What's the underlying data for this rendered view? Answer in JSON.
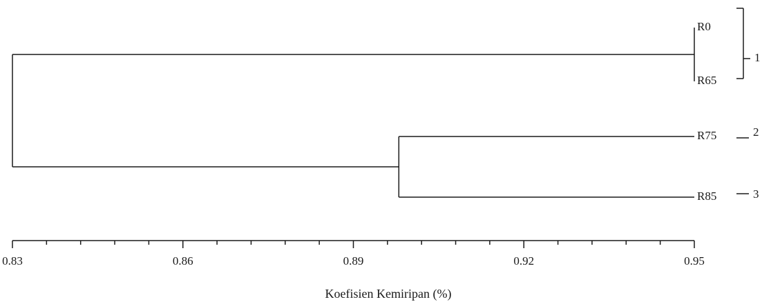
{
  "chart_data": {
    "type": "dendrogram",
    "title": "",
    "xlabel": "Koefisien Kemiripan (%)",
    "xlim": [
      0.83,
      0.95
    ],
    "major_ticks": [
      0.83,
      0.86,
      0.89,
      0.92,
      0.95
    ],
    "minor_tick_step": 0.006,
    "tick_labels": [
      "0.83",
      "0.86",
      "0.89",
      "0.92",
      "0.95"
    ],
    "leaves": [
      "R0",
      "R65",
      "R75",
      "R85"
    ],
    "merges": [
      {
        "left": "R0",
        "right": "R65",
        "similarity": 0.95
      },
      {
        "left": "R75",
        "right": "R85",
        "similarity": 0.898
      },
      {
        "left": "R0+R65",
        "right": "R75+R85",
        "similarity": 0.83
      }
    ],
    "groups": [
      {
        "label": "1",
        "members": [
          "R0",
          "R65"
        ]
      },
      {
        "label": "2",
        "members": [
          "R75"
        ]
      },
      {
        "label": "3",
        "members": [
          "R85"
        ]
      }
    ]
  }
}
